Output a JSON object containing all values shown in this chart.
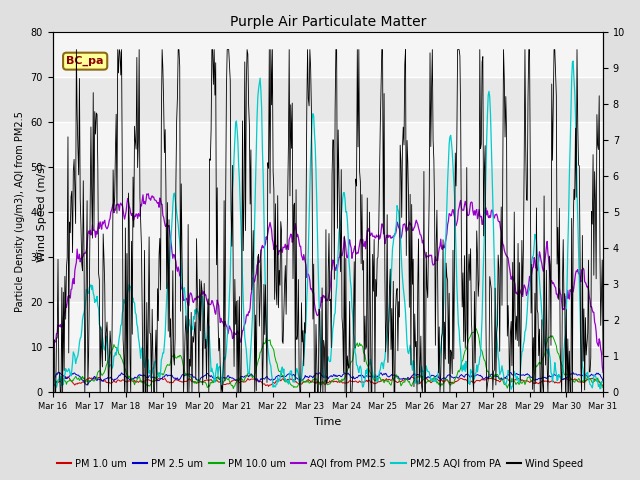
{
  "title": "Purple Air Particulate Matter",
  "xlabel": "Time",
  "ylabel_left": "Particle Density (ug/m3), AQI from PM2.5",
  "ylabel_right": "Wind Speed (m/s)",
  "ylim_left": [
    0,
    80
  ],
  "ylim_right": [
    0,
    10
  ],
  "yticks_left": [
    0,
    10,
    20,
    30,
    40,
    50,
    60,
    70,
    80
  ],
  "yticks_right": [
    0.0,
    1.0,
    2.0,
    3.0,
    4.0,
    5.0,
    6.0,
    7.0,
    8.0,
    9.0,
    10.0
  ],
  "xtick_labels": [
    "Mar 16",
    "Mar 17",
    "Mar 18",
    "Mar 19",
    "Mar 20",
    "Mar 21",
    "Mar 22",
    "Mar 23",
    "Mar 24",
    "Mar 25",
    "Mar 26",
    "Mar 27",
    "Mar 28",
    "Mar 29",
    "Mar 30",
    "Mar 31"
  ],
  "box_label": "BC_pa",
  "box_color": "#FFFF99",
  "box_edgecolor": "#8B6914",
  "box_textcolor": "#8B0000",
  "colors": {
    "pm1": "#CC0000",
    "pm25": "#0000CC",
    "pm10": "#00AA00",
    "aqi_pm25": "#9900CC",
    "aqi_pa": "#00CCCC",
    "wind": "#000000"
  },
  "legend_labels": [
    "PM 1.0 um",
    "PM 2.5 um",
    "PM 10.0 um",
    "AQI from PM2.5",
    "PM2.5 AQI from PA",
    "Wind Speed"
  ],
  "background_color": "#E0E0E0",
  "plot_bg_color": "#FFFFFF",
  "grid_color": "#D8D8D8",
  "n_points": 720
}
